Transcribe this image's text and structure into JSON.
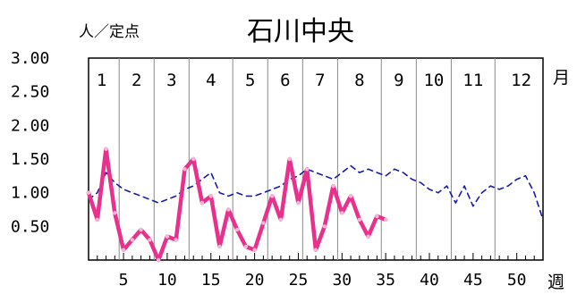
{
  "chart_data": {
    "type": "line",
    "title": "石川中央",
    "ylabel": "人／定点",
    "xlabel": "週",
    "month_label": "月",
    "ylim": [
      0,
      3.0
    ],
    "xlim": [
      1,
      53
    ],
    "yticks": [
      "3.00",
      "2.50",
      "2.00",
      "1.50",
      "1.00",
      "0.50"
    ],
    "xticks": [
      5,
      10,
      15,
      20,
      25,
      30,
      35,
      40,
      45,
      50
    ],
    "months": [
      "1",
      "2",
      "3",
      "4",
      "5",
      "6",
      "7",
      "8",
      "9",
      "10",
      "11",
      "12"
    ],
    "month_boundaries": [
      4.5,
      8.5,
      12.5,
      17.5,
      21.5,
      25.5,
      29.5,
      34.5,
      38.5,
      42.5,
      47.5
    ],
    "grid": true,
    "series": [
      {
        "color": "#e8308c",
        "style": "solid",
        "x": [
          1,
          2,
          3,
          4,
          5,
          6,
          7,
          8,
          9,
          10,
          11,
          12,
          13,
          14,
          15,
          16,
          17,
          18,
          19,
          20,
          21,
          22,
          23,
          24,
          25,
          26,
          27,
          28,
          29,
          30,
          31,
          32,
          33,
          34,
          35
        ],
        "values": [
          1.0,
          0.6,
          1.65,
          0.7,
          0.15,
          0.3,
          0.45,
          0.3,
          0.0,
          0.35,
          0.3,
          1.35,
          1.5,
          0.85,
          0.95,
          0.2,
          0.75,
          0.45,
          0.2,
          0.15,
          0.55,
          0.95,
          0.6,
          1.5,
          0.85,
          1.35,
          0.15,
          0.5,
          1.1,
          0.7,
          0.95,
          0.6,
          0.35,
          0.65,
          0.6
        ]
      },
      {
        "color": "#1a1aa8",
        "style": "dashed",
        "x": [
          1,
          2,
          3,
          4,
          5,
          6,
          7,
          8,
          9,
          10,
          11,
          12,
          13,
          14,
          15,
          16,
          17,
          18,
          19,
          20,
          21,
          22,
          23,
          24,
          25,
          26,
          27,
          28,
          29,
          30,
          31,
          32,
          33,
          34,
          35,
          36,
          37,
          38,
          39,
          40,
          41,
          42,
          43,
          44,
          45,
          46,
          47,
          48,
          49,
          50,
          51,
          52,
          53
        ],
        "values": [
          0.9,
          1.0,
          1.3,
          1.15,
          1.05,
          1.0,
          0.95,
          0.9,
          0.85,
          0.9,
          0.95,
          1.05,
          1.1,
          1.2,
          1.3,
          1.0,
          0.95,
          1.0,
          0.95,
          0.95,
          1.0,
          1.05,
          1.1,
          1.2,
          1.25,
          1.35,
          1.3,
          1.25,
          1.2,
          1.3,
          1.4,
          1.3,
          1.35,
          1.3,
          1.25,
          1.35,
          1.3,
          1.2,
          1.15,
          1.05,
          1.0,
          1.1,
          0.85,
          1.1,
          0.8,
          1.0,
          1.1,
          1.05,
          1.1,
          1.2,
          1.25,
          1.0,
          0.6
        ]
      }
    ]
  }
}
